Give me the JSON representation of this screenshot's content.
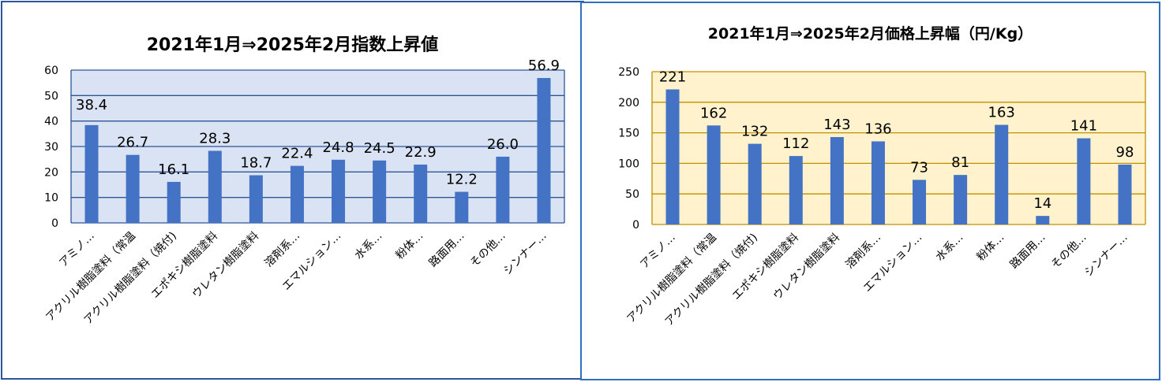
{
  "colors": {
    "bar": "#4472c4",
    "left_plot_bg": "#dae3f3",
    "right_plot_bg": "#fff2cc",
    "left_grid": "#2e5597",
    "right_grid": "#bf9000",
    "left_border": "#2e5597",
    "right_border": "#2e6fc0"
  },
  "chart_data": [
    {
      "type": "bar",
      "title": "2021年1月⇒2025年2月指数上昇値",
      "categories": [
        "アミノ…",
        "アクリル樹脂塗料（常温",
        "アクリル樹脂塗料（焼付)",
        "エポキシ樹脂塗料",
        "ウレタン樹脂塗料",
        "溶剤系…",
        "エマルション…",
        "水系…",
        "粉体…",
        "路面用…",
        "その他…",
        "シンナー…"
      ],
      "values": [
        38.4,
        26.7,
        16.1,
        28.3,
        18.7,
        22.4,
        24.8,
        24.5,
        22.9,
        12.2,
        26.0,
        56.9
      ],
      "value_labels": [
        "38.4",
        "26.7",
        "16.1",
        "28.3",
        "18.7",
        "22.4",
        "24.8",
        "24.5",
        "22.9",
        "12.2",
        "26.0",
        "56.9"
      ],
      "yticks": [
        "0",
        "10",
        "20",
        "30",
        "40",
        "50",
        "60"
      ],
      "ylim": [
        0,
        60
      ],
      "xlabel": "",
      "ylabel": "",
      "grid": true,
      "legend": "none"
    },
    {
      "type": "bar",
      "title": "2021年1月⇒2025年2月価格上昇幅（円/Kg）",
      "categories": [
        "アミノ…",
        "アクリル樹脂塗料（常温",
        "アクリル樹脂塗料（焼付)",
        "エポキシ樹脂塗料",
        "ウレタン樹脂塗料",
        "溶剤系…",
        "エマルション…",
        "水系…",
        "粉体…",
        "路面用…",
        "その他…",
        "シンナー…"
      ],
      "values": [
        221,
        162,
        132,
        112,
        143,
        136,
        73,
        81,
        163,
        14,
        141,
        98
      ],
      "value_labels": [
        "221",
        "162",
        "132",
        "112",
        "143",
        "136",
        "73",
        "81",
        "163",
        "14",
        "141",
        "98"
      ],
      "yticks": [
        "0",
        "50",
        "100",
        "150",
        "200",
        "250"
      ],
      "ylim": [
        0,
        250
      ],
      "xlabel": "",
      "ylabel": "",
      "grid": true,
      "legend": "none"
    }
  ]
}
